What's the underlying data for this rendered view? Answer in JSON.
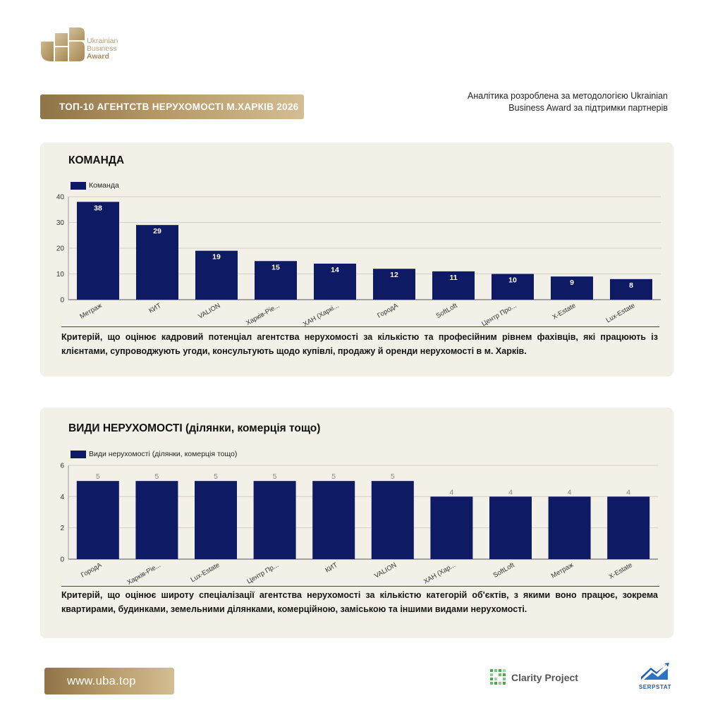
{
  "brand": {
    "line1": "Ukrainian",
    "line2": "Business",
    "line3": "Award",
    "gold": "#b59866"
  },
  "header": {
    "title": "ТОП-10 АГЕНТСТВ НЕРУХОМОСТІ М.ХАРКІВ 2026",
    "analytics_line1": "Аналітика розроблена за методологією Ukrainian",
    "analytics_line2": "Business Award за підтримки партнерів"
  },
  "sections": [
    {
      "title": "КОМАНДА",
      "description": "Критерій, що оцінює кадровий потенціал агентства нерухомості за кількістю та професійним рівнем фахівців, які працюють із клієнтами, супроводжують угоди, консультують щодо купівлі, продажу й оренди нерухомості в м. Харків."
    },
    {
      "title": "ВИДИ НЕРУХОМОСТІ (ділянки, комерція тощо)",
      "description": "Критерій, що оцінює широту спеціалізації агентства нерухомості за кількістю категорій об'єктів, з якими воно працює, зокрема квартирами, будинками, земельними ділянками, комерційною, заміською та іншими видами нерухомості."
    }
  ],
  "chart_data": [
    {
      "type": "bar",
      "title": "КОМАНДА",
      "legend": "top-left",
      "grid": true,
      "color": "#0f1a65",
      "label_color": "#ffffff",
      "ylim": [
        0,
        40
      ],
      "yticks": [
        0,
        10,
        20,
        30,
        40
      ],
      "categories": [
        "Метраж",
        "КИТ",
        "VALION",
        "Харків-Ріе...",
        "ХАН (Харкі...",
        "ГородА",
        "SoftLoft",
        "Центр Про...",
        "X-Estate",
        "Lux-Estate"
      ],
      "series": [
        {
          "name": "Команда",
          "values": [
            38,
            29,
            19,
            15,
            14,
            12,
            11,
            10,
            9,
            8
          ]
        }
      ]
    },
    {
      "type": "bar",
      "title": "ВИДИ НЕРУХОМОСТІ (ділянки, комерція тощо)",
      "legend": "top-left",
      "grid": true,
      "color": "#0f1a65",
      "label_color": "#888888",
      "ylim": [
        0,
        6
      ],
      "yticks": [
        0,
        2,
        4,
        6
      ],
      "categories": [
        "ГородА",
        "Харків-Ріе...",
        "Lux-Estate",
        "Центр Пр...",
        "КИТ",
        "VALION",
        "ХАН (Хар...",
        "SoftLoft",
        "Метраж",
        "X-Estate"
      ],
      "series": [
        {
          "name": "Види нерухомості (ділянки, комерція тощо)",
          "values": [
            5,
            5,
            5,
            5,
            5,
            5,
            4,
            4,
            4,
            4
          ]
        }
      ]
    }
  ],
  "footer": {
    "site": "www.uba.top",
    "partner1": "Clarity Project",
    "partner2": "SERPSTAT"
  }
}
